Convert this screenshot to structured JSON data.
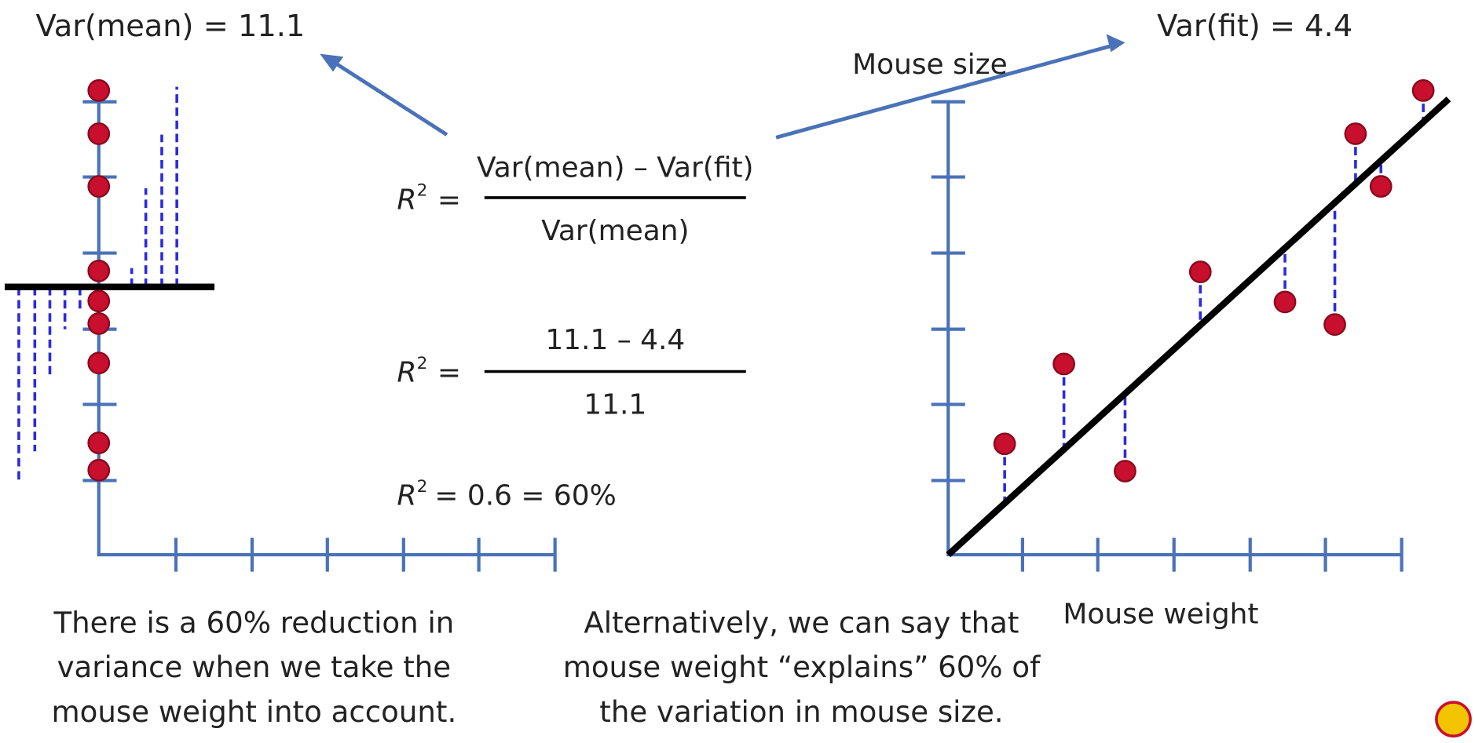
{
  "labels": {
    "var_mean": "Var(mean) = 11.1",
    "var_fit": "Var(fit) = 4.4",
    "y_axis": "Mouse size",
    "x_axis": "Mouse weight"
  },
  "formulas": [
    {
      "symbol": "R",
      "exponent": "2",
      "equals": "=",
      "numerator": "Var(mean) – Var(fit)",
      "denominator": "Var(mean)"
    },
    {
      "symbol": "R",
      "exponent": "2",
      "equals": "=",
      "numerator": "11.1 – 4.4",
      "denominator": "11.1"
    }
  ],
  "result": {
    "symbol": "R",
    "exponent": "2",
    "text": "= 0.6 = 60%"
  },
  "notes": {
    "left": [
      "There is a 60% reduction in",
      "variance when we take the",
      "mouse weight into account."
    ],
    "right": [
      "Alternatively, we can say that",
      "mouse weight “explains” 60% of",
      "the variation in mouse size."
    ]
  }
}
